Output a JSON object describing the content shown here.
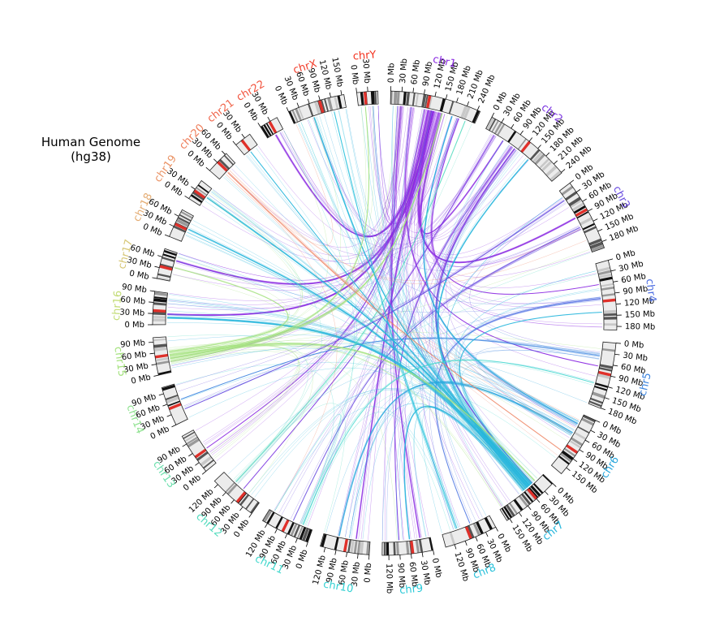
{
  "title": {
    "line1": "Human Genome",
    "line2": "(hg38)"
  },
  "tick_unit": "Mb",
  "tick_interval_mb": 30,
  "chromosomes": [
    {
      "name": "chr1",
      "size_mb": 248,
      "color": "#8b2be2"
    },
    {
      "name": "chr2",
      "size_mb": 242,
      "color": "#7b35e0"
    },
    {
      "name": "chr3",
      "size_mb": 198,
      "color": "#6a4de0"
    },
    {
      "name": "chr4",
      "size_mb": 190,
      "color": "#4d6ee2"
    },
    {
      "name": "chr5",
      "size_mb": 181,
      "color": "#3e86e0"
    },
    {
      "name": "chr6",
      "size_mb": 171,
      "color": "#29a7dd"
    },
    {
      "name": "chr7",
      "size_mb": 159,
      "color": "#25b6dc"
    },
    {
      "name": "chr8",
      "size_mb": 145,
      "color": "#28c1db"
    },
    {
      "name": "chr9",
      "size_mb": 138,
      "color": "#2ac9d8"
    },
    {
      "name": "chr10",
      "size_mb": 134,
      "color": "#33d1d3"
    },
    {
      "name": "chr11",
      "size_mb": 135,
      "color": "#3fd7cc"
    },
    {
      "name": "chr12",
      "size_mb": 133,
      "color": "#52dbbe"
    },
    {
      "name": "chr13",
      "size_mb": 114,
      "color": "#6edfae"
    },
    {
      "name": "chr14",
      "size_mb": 107,
      "color": "#8ee28f"
    },
    {
      "name": "chr15",
      "size_mb": 102,
      "color": "#a4e27e"
    },
    {
      "name": "chr16",
      "size_mb": 90,
      "color": "#c3dc76"
    },
    {
      "name": "chr17",
      "size_mb": 83,
      "color": "#d7c777"
    },
    {
      "name": "chr18",
      "size_mb": 80,
      "color": "#e4ad74"
    },
    {
      "name": "chr19",
      "size_mb": 59,
      "color": "#ea9467"
    },
    {
      "name": "chr20",
      "size_mb": 64,
      "color": "#ee7d5a"
    },
    {
      "name": "chr21",
      "size_mb": 47,
      "color": "#f0654b"
    },
    {
      "name": "chr22",
      "size_mb": 51,
      "color": "#f2523c"
    },
    {
      "name": "chrX",
      "size_mb": 156,
      "color": "#f23f2d"
    },
    {
      "name": "chrY",
      "size_mb": 57,
      "color": "#f3321e"
    }
  ],
  "links": [
    {
      "from": "chr1",
      "from_mb": 120,
      "to": "chr3",
      "to_mb": 90,
      "weight": 3
    },
    {
      "from": "chr1",
      "from_mb": 125,
      "to": "chr16",
      "to_mb": 30,
      "weight": 3
    },
    {
      "from": "chr1",
      "from_mb": 118,
      "to": "chr22",
      "to_mb": 25,
      "weight": 2
    },
    {
      "from": "chr1",
      "from_mb": 140,
      "to": "chr17",
      "to_mb": 60,
      "weight": 2
    },
    {
      "from": "chr1",
      "from_mb": 110,
      "to": "chr10",
      "to_mb": 40,
      "weight": 2
    },
    {
      "from": "chr1",
      "from_mb": 30,
      "to": "chr9",
      "to_mb": 30,
      "weight": 2
    },
    {
      "from": "chr1",
      "from_mb": 150,
      "to": "chr2",
      "to_mb": 60,
      "weight": 2
    },
    {
      "from": "chr1",
      "from_mb": 100,
      "to": "chr13",
      "to_mb": 50,
      "weight": 1
    },
    {
      "from": "chr1",
      "from_mb": 200,
      "to": "chr4",
      "to_mb": 60,
      "weight": 1
    },
    {
      "from": "chr1",
      "from_mb": 60,
      "to": "chr5",
      "to_mb": 70,
      "weight": 1
    },
    {
      "from": "chr2",
      "from_mb": 100,
      "to": "chr7",
      "to_mb": 40,
      "weight": 2
    },
    {
      "from": "chr2",
      "from_mb": 90,
      "to": "chr9",
      "to_mb": 90,
      "weight": 1
    },
    {
      "from": "chr2",
      "from_mb": 30,
      "to": "chr12",
      "to_mb": 60,
      "weight": 1
    },
    {
      "from": "chr3",
      "from_mb": 120,
      "to": "chr11",
      "to_mb": 60,
      "weight": 1
    },
    {
      "from": "chr4",
      "from_mb": 100,
      "to": "chr8",
      "to_mb": 60,
      "weight": 1
    },
    {
      "from": "chr5",
      "from_mb": 40,
      "to": "chr14",
      "to_mb": 60,
      "weight": 1
    },
    {
      "from": "chr7",
      "from_mb": 55,
      "to": "chr16",
      "to_mb": 20,
      "weight": 4
    },
    {
      "from": "chr7",
      "from_mb": 60,
      "to": "chr18",
      "to_mb": 40,
      "weight": 2
    },
    {
      "from": "chr7",
      "from_mb": 50,
      "to": "chrX",
      "to_mb": 60,
      "weight": 2
    },
    {
      "from": "chr7",
      "from_mb": 45,
      "to": "chr19",
      "to_mb": 30,
      "weight": 2
    },
    {
      "from": "chr7",
      "from_mb": 65,
      "to": "chr2",
      "to_mb": 150,
      "weight": 2
    },
    {
      "from": "chr7",
      "from_mb": 70,
      "to": "chr9",
      "to_mb": 60,
      "weight": 2
    },
    {
      "from": "chr7",
      "from_mb": 50,
      "to": "chr21",
      "to_mb": 20,
      "weight": 1
    },
    {
      "from": "chr7",
      "from_mb": 40,
      "to": "chr4",
      "to_mb": 140,
      "weight": 1
    },
    {
      "from": "chr6",
      "from_mb": 60,
      "to": "chr10",
      "to_mb": 90,
      "weight": 2
    },
    {
      "from": "chr6",
      "from_mb": 30,
      "to": "chr1",
      "to_mb": 180,
      "weight": 2
    },
    {
      "from": "chr15",
      "from_mb": 40,
      "to": "chr1",
      "to_mb": 150,
      "weight": 2
    },
    {
      "from": "chr15",
      "from_mb": 50,
      "to": "chr7",
      "to_mb": 30,
      "weight": 2
    },
    {
      "from": "chr15",
      "from_mb": 30,
      "to": "chrY",
      "to_mb": 20,
      "weight": 1
    },
    {
      "from": "chr15",
      "from_mb": 60,
      "to": "chr17",
      "to_mb": 40,
      "weight": 1
    },
    {
      "from": "chr12",
      "from_mb": 90,
      "to": "chr1",
      "to_mb": 220,
      "weight": 1
    },
    {
      "from": "chr20",
      "from_mb": 30,
      "to": "chr6",
      "to_mb": 120,
      "weight": 1
    },
    {
      "from": "chr11",
      "from_mb": 30,
      "to": "chr5",
      "to_mb": 120,
      "weight": 1
    },
    {
      "from": "chr8",
      "from_mb": 100,
      "to": "chrX",
      "to_mb": 120,
      "weight": 1
    },
    {
      "from": "chr3",
      "from_mb": 30,
      "to": "chr14",
      "to_mb": 30,
      "weight": 1
    }
  ]
}
